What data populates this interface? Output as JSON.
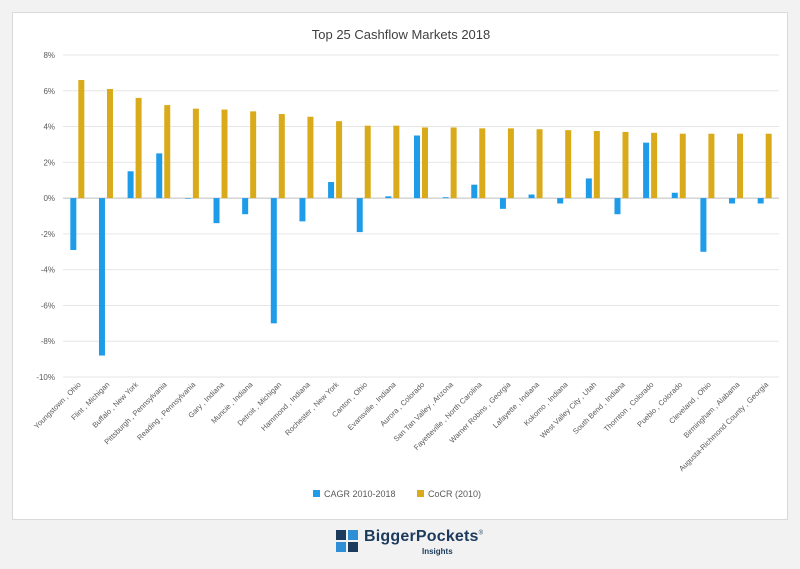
{
  "chart_data": {
    "type": "bar",
    "title": "Top 25 Cashflow Markets 2018",
    "categories": [
      "Youngstown , Ohio",
      "Flint , Michigan",
      "Buffalo , New York",
      "Pittsburgh , Pennsylvania",
      "Reading , Pennsylvania",
      "Gary , Indiana",
      "Muncie , Indiana",
      "Detroit , Michigan",
      "Hammond , Indiana",
      "Rochester , New York",
      "Canton , Ohio",
      "Evansville , Indiana",
      "Aurora , Colorado",
      "San Tan Valley , Arizona",
      "Fayetteville , North Carolina",
      "Warner Robins , Georgia",
      "Lafayette , Indiana",
      "Kokomo , Indiana",
      "West Valley City , Utah",
      "South Bend , Indiana",
      "Thornton , Colorado",
      "Pueblo , Colorado",
      "Cleveland , Ohio",
      "Birmingham , Alabama",
      "Augusta-Richmond County , Georgia"
    ],
    "series": [
      {
        "name": "CAGR 2010-2018",
        "color": "#1e9be9",
        "values": [
          -2.9,
          -8.8,
          1.5,
          2.5,
          0.0,
          -1.4,
          -0.9,
          -7.0,
          -1.3,
          0.9,
          -1.9,
          0.1,
          3.5,
          0.05,
          0.75,
          -0.6,
          0.2,
          -0.3,
          1.1,
          -0.9,
          3.1,
          0.3,
          -3.0,
          -0.3,
          -0.3
        ]
      },
      {
        "name": "CoCR (2010)",
        "color": "#d9ab1a",
        "values": [
          6.6,
          6.1,
          5.6,
          5.2,
          5.0,
          4.95,
          4.85,
          4.7,
          4.55,
          4.3,
          4.05,
          4.05,
          3.95,
          3.95,
          3.9,
          3.9,
          3.85,
          3.8,
          3.75,
          3.7,
          3.65,
          3.6,
          3.6,
          3.6,
          3.6
        ]
      }
    ],
    "ylim": [
      -10,
      8
    ],
    "yticks": [
      8,
      6,
      4,
      2,
      0,
      -2,
      -4,
      -6,
      -8,
      -10
    ],
    "ytick_labels": [
      "8%",
      "6%",
      "4%",
      "2%",
      "0%",
      "-2%",
      "-4%",
      "-6%",
      "-8%",
      "-10%"
    ],
    "grid": true,
    "legend_position": "bottom"
  },
  "logo": {
    "brand": "BiggerPockets",
    "reg": "®",
    "sub": "Insights",
    "colors": {
      "dark": "#1b3a5c",
      "accent": "#2e8fd6"
    }
  }
}
